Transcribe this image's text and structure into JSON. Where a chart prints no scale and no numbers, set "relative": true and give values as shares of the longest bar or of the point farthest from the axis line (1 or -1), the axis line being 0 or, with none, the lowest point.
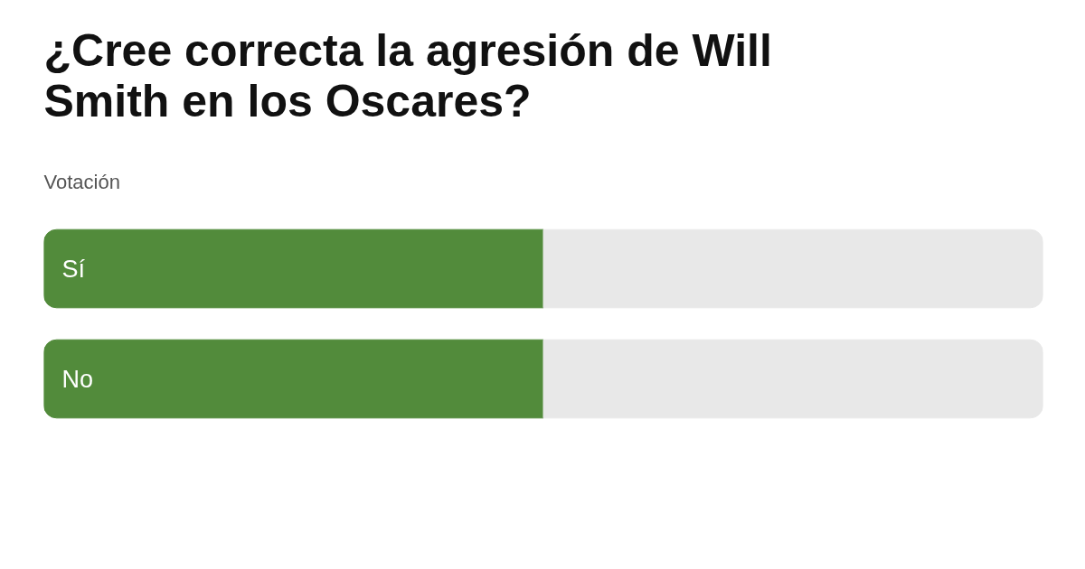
{
  "chart_data": {
    "type": "bar",
    "orientation": "horizontal",
    "relative": true,
    "title": "¿Cree correcta la agresión de Will Smith en los Oscares?",
    "subtitle": "Votación",
    "categories": [
      "Sí",
      "No"
    ],
    "stacked": true,
    "series": [
      {
        "color": "#528b3b",
        "values": [
          0.5,
          0.5
        ]
      },
      {
        "color": "#e8e8e8",
        "values": [
          0.5,
          0.5
        ]
      }
    ]
  }
}
